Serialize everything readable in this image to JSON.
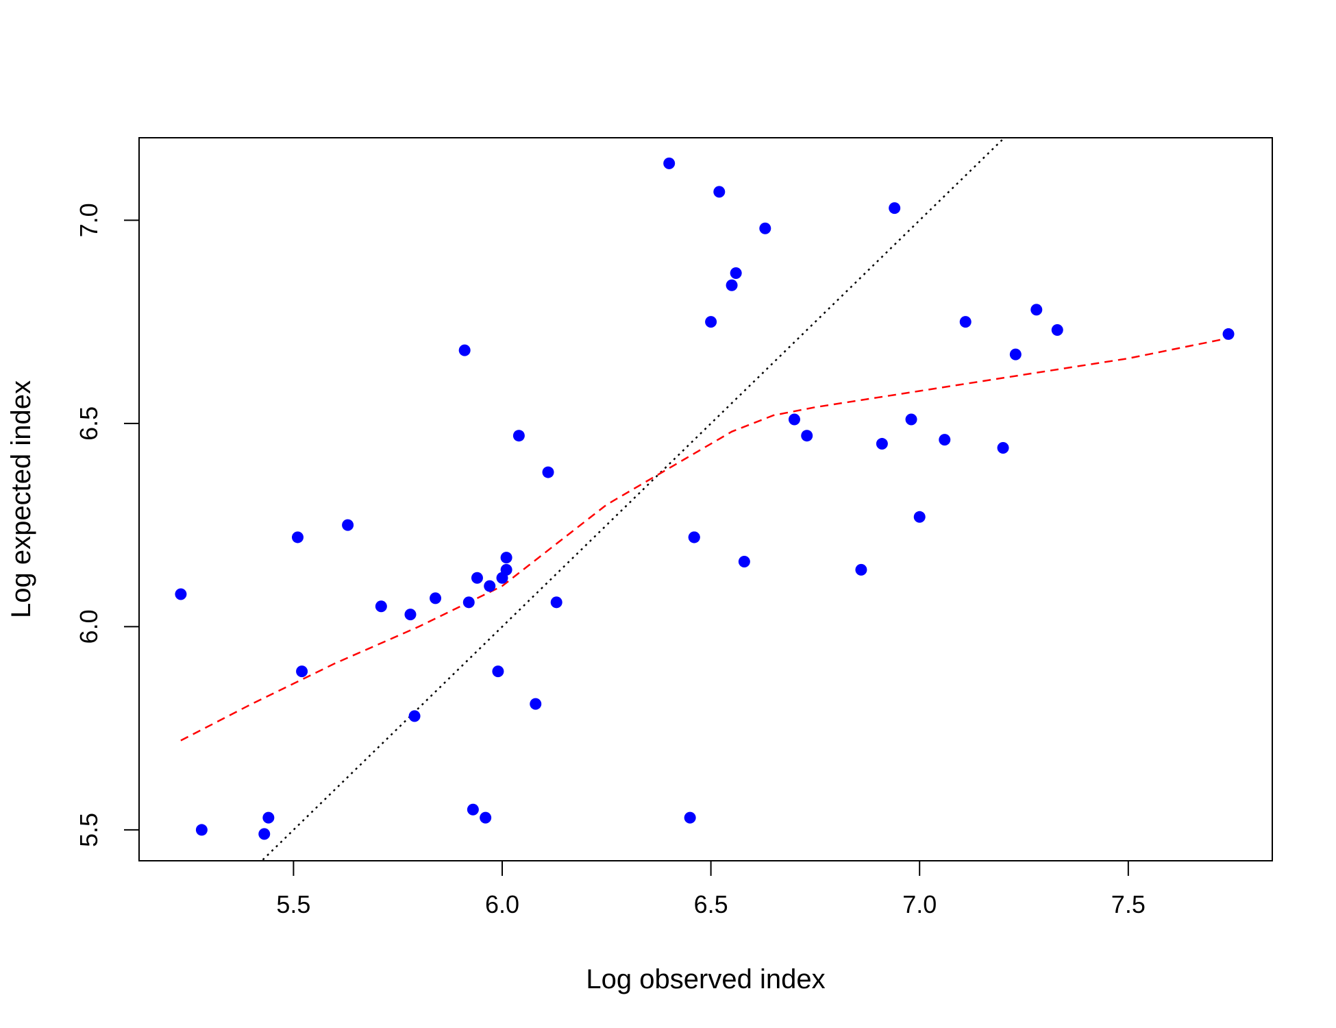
{
  "chart_data": {
    "type": "scatter",
    "title": "",
    "xlabel": "Log observed index",
    "ylabel": "Log expected index",
    "xlim": [
      5.13,
      7.845
    ],
    "ylim": [
      5.424,
      7.203
    ],
    "x_ticks": [
      5.5,
      6.0,
      6.5,
      7.0,
      7.5
    ],
    "y_ticks": [
      5.5,
      6.0,
      6.5,
      7.0
    ],
    "x_tick_labels": [
      "5.5",
      "6.0",
      "6.5",
      "7.0",
      "7.5"
    ],
    "y_tick_labels": [
      "5.5",
      "6.0",
      "6.5",
      "7.0"
    ],
    "grid": false,
    "legend": "none",
    "colors": {
      "points": "#0000ff",
      "smooth": "#ff0000",
      "reference": "#000000"
    },
    "points": [
      {
        "x": 5.23,
        "y": 6.08
      },
      {
        "x": 5.28,
        "y": 5.5
      },
      {
        "x": 5.43,
        "y": 5.49
      },
      {
        "x": 5.44,
        "y": 5.53
      },
      {
        "x": 5.51,
        "y": 6.22
      },
      {
        "x": 5.52,
        "y": 5.89
      },
      {
        "x": 5.63,
        "y": 6.25
      },
      {
        "x": 5.71,
        "y": 6.05
      },
      {
        "x": 5.78,
        "y": 6.03
      },
      {
        "x": 5.79,
        "y": 5.78
      },
      {
        "x": 5.84,
        "y": 6.07
      },
      {
        "x": 5.91,
        "y": 6.68
      },
      {
        "x": 5.92,
        "y": 6.06
      },
      {
        "x": 5.93,
        "y": 5.55
      },
      {
        "x": 5.94,
        "y": 6.12
      },
      {
        "x": 5.96,
        "y": 5.53
      },
      {
        "x": 5.97,
        "y": 6.1
      },
      {
        "x": 5.99,
        "y": 5.89
      },
      {
        "x": 6.0,
        "y": 6.12
      },
      {
        "x": 6.01,
        "y": 6.17
      },
      {
        "x": 6.01,
        "y": 6.14
      },
      {
        "x": 6.04,
        "y": 6.47
      },
      {
        "x": 6.08,
        "y": 5.81
      },
      {
        "x": 6.11,
        "y": 6.38
      },
      {
        "x": 6.13,
        "y": 6.06
      },
      {
        "x": 6.4,
        "y": 7.14
      },
      {
        "x": 6.45,
        "y": 5.53
      },
      {
        "x": 6.46,
        "y": 6.22
      },
      {
        "x": 6.46,
        "y": 6.22
      },
      {
        "x": 6.5,
        "y": 6.75
      },
      {
        "x": 6.52,
        "y": 7.07
      },
      {
        "x": 6.55,
        "y": 6.84
      },
      {
        "x": 6.56,
        "y": 6.87
      },
      {
        "x": 6.58,
        "y": 6.16
      },
      {
        "x": 6.63,
        "y": 6.98
      },
      {
        "x": 6.7,
        "y": 6.51
      },
      {
        "x": 6.73,
        "y": 6.47
      },
      {
        "x": 6.86,
        "y": 6.14
      },
      {
        "x": 6.91,
        "y": 6.45
      },
      {
        "x": 6.94,
        "y": 7.03
      },
      {
        "x": 6.98,
        "y": 6.51
      },
      {
        "x": 7.0,
        "y": 6.27
      },
      {
        "x": 7.06,
        "y": 6.46
      },
      {
        "x": 7.11,
        "y": 6.75
      },
      {
        "x": 7.2,
        "y": 6.44
      },
      {
        "x": 7.23,
        "y": 6.67
      },
      {
        "x": 7.28,
        "y": 6.78
      },
      {
        "x": 7.33,
        "y": 6.73
      },
      {
        "x": 7.74,
        "y": 6.72
      }
    ],
    "smooth_line": [
      {
        "x": 5.23,
        "y": 5.72
      },
      {
        "x": 5.4,
        "y": 5.81
      },
      {
        "x": 5.6,
        "y": 5.91
      },
      {
        "x": 5.8,
        "y": 6.0
      },
      {
        "x": 6.0,
        "y": 6.1
      },
      {
        "x": 6.1,
        "y": 6.18
      },
      {
        "x": 6.25,
        "y": 6.3
      },
      {
        "x": 6.4,
        "y": 6.39
      },
      {
        "x": 6.55,
        "y": 6.48
      },
      {
        "x": 6.65,
        "y": 6.52
      },
      {
        "x": 6.75,
        "y": 6.54
      },
      {
        "x": 7.0,
        "y": 6.58
      },
      {
        "x": 7.25,
        "y": 6.62
      },
      {
        "x": 7.5,
        "y": 6.66
      },
      {
        "x": 7.74,
        "y": 6.71
      }
    ],
    "reference_line": {
      "slope": 1,
      "intercept": 0
    }
  }
}
